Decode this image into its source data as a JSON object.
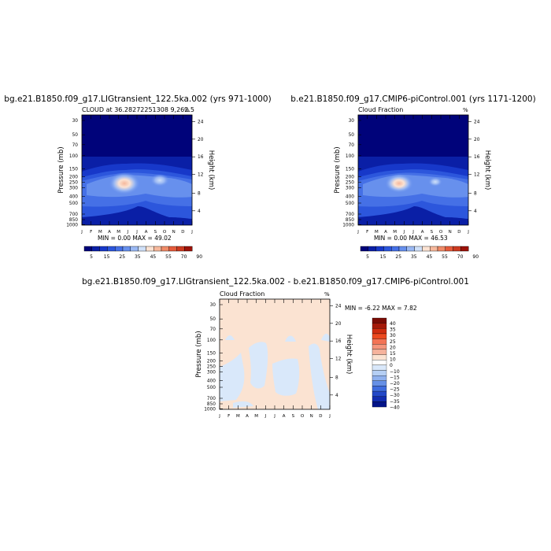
{
  "chart_data": [
    {
      "type": "contour",
      "title": "bg.e21.B1850.f09_g17.LIGtransient_122.5ka.002 (yrs 971-1000)",
      "subtitle": "CLOUD at 36.28272251308 9,262.5",
      "units": "%",
      "stats": "MIN =    0.00 MAX =   49.02",
      "xlabel": "",
      "ylabel": "Pressure (mb)",
      "ylabel_right": "Height (km)",
      "x_ticks": [
        "J",
        "F",
        "M",
        "A",
        "M",
        "J",
        "J",
        "A",
        "S",
        "O",
        "N",
        "D",
        "J"
      ],
      "y_ticks": [
        "30",
        "50",
        "70",
        "100",
        "150",
        "200",
        "250",
        "300",
        "400",
        "500",
        "700",
        "850",
        "1000"
      ],
      "y2_ticks": [
        "24",
        "20",
        "16",
        "12",
        "8",
        "4"
      ],
      "colorbar_labels": [
        "5",
        "15",
        "25",
        "35",
        "45",
        "55",
        "70",
        "90"
      ]
    },
    {
      "type": "contour",
      "title": "b.e21.B1850.f09_g17.CMIP6-piControl.001 (yrs 1171-1200)",
      "subtitle": "Cloud Fraction",
      "units": "%",
      "stats": "MIN =    0.00 MAX =   46.53",
      "xlabel": "",
      "ylabel": "Pressure (mb)",
      "ylabel_right": "Height (km)",
      "x_ticks": [
        "J",
        "F",
        "M",
        "A",
        "M",
        "J",
        "J",
        "A",
        "S",
        "O",
        "N",
        "D",
        "J"
      ],
      "y_ticks": [
        "30",
        "50",
        "70",
        "100",
        "150",
        "200",
        "250",
        "300",
        "400",
        "500",
        "700",
        "850",
        "1000"
      ],
      "y2_ticks": [
        "24",
        "20",
        "16",
        "12",
        "8",
        "4"
      ],
      "colorbar_labels": [
        "5",
        "15",
        "25",
        "35",
        "45",
        "55",
        "70",
        "90"
      ]
    },
    {
      "type": "contour",
      "title": "bg.e21.B1850.f09_g17.LIGtransient_122.5ka.002 - b.e21.B1850.f09_g17.CMIP6-piControl.001",
      "subtitle": "Cloud Fraction",
      "units": "%",
      "stats": "MIN =   -6.22 MAX =    7.82",
      "xlabel": "",
      "ylabel": "Pressure (mb)",
      "ylabel_right": "Height (km)",
      "x_ticks": [
        "J",
        "F",
        "M",
        "A",
        "M",
        "J",
        "J",
        "A",
        "S",
        "O",
        "N",
        "D",
        "J"
      ],
      "y_ticks": [
        "30",
        "50",
        "70",
        "100",
        "150",
        "200",
        "250",
        "300",
        "400",
        "500",
        "700",
        "850",
        "1000"
      ],
      "y2_ticks": [
        "24",
        "20",
        "16",
        "12",
        "8",
        "4"
      ],
      "colorbar_labels": [
        "40",
        "35",
        "30",
        "25",
        "20",
        "15",
        "10",
        "0",
        "−10",
        "−15",
        "−20",
        "−25",
        "−30",
        "−35",
        "−40"
      ]
    }
  ],
  "colors": {
    "abs_scale": [
      "#00037a",
      "#0a1fa6",
      "#1738c9",
      "#2c56dc",
      "#4570e6",
      "#6790ed",
      "#9ab8f3",
      "#cfe0f8",
      "#fbe2d2",
      "#f6b89c",
      "#f08b68",
      "#e55b3b",
      "#cc3a20",
      "#9c1209"
    ],
    "diff_scale": [
      "#7a0c05",
      "#a51a0a",
      "#d02d10",
      "#ec4a20",
      "#f37355",
      "#f5957c",
      "#f6b39d",
      "#fbe3d2",
      "#ffffff",
      "#d9e8fa",
      "#b5cff4",
      "#8fb1ee",
      "#6690e6",
      "#3f6cde",
      "#2248c8",
      "#112cb0",
      "#031489"
    ],
    "diff_pos": "#fbe3d2",
    "diff_neg": "#d9e8fa"
  }
}
